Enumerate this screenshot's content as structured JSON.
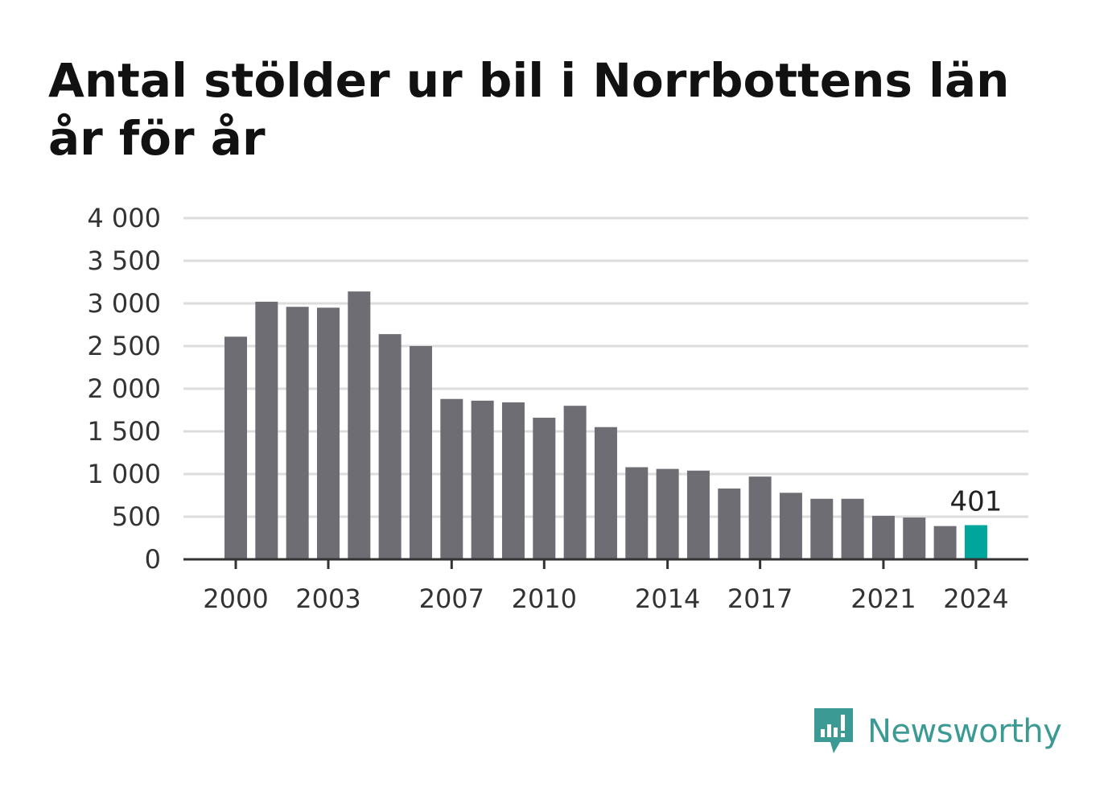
{
  "title": "Antal stölder ur bil i Norrbottens län år för år",
  "brand": {
    "name": "Newsworthy",
    "color": "#3c9a94"
  },
  "colors": {
    "bar": "#6e6d74",
    "highlight": "#00a69b",
    "grid": "#dddddd",
    "axis": "#333333"
  },
  "chart_data": {
    "type": "bar",
    "categories": [
      "2000",
      "2001",
      "2002",
      "2003",
      "2004",
      "2005",
      "2006",
      "2007",
      "2008",
      "2009",
      "2010",
      "2011",
      "2012",
      "2013",
      "2014",
      "2015",
      "2016",
      "2017",
      "2018",
      "2019",
      "2020",
      "2021",
      "2022",
      "2023",
      "2024"
    ],
    "values": [
      2610,
      3020,
      2960,
      2950,
      3140,
      2640,
      2500,
      1880,
      1860,
      1840,
      1660,
      1800,
      1550,
      1080,
      1060,
      1040,
      830,
      970,
      780,
      710,
      710,
      510,
      490,
      390,
      401
    ],
    "highlight": "2024",
    "data_labels": [
      {
        "category": "2024",
        "text": "401"
      }
    ],
    "x_tick_labels": [
      "2000",
      "2003",
      "2007",
      "2010",
      "2014",
      "2017",
      "2021",
      "2024"
    ],
    "y_ticks": [
      0,
      500,
      1000,
      1500,
      2000,
      2500,
      3000,
      3500,
      4000
    ],
    "y_tick_labels": [
      "0",
      "500",
      "1 000",
      "1 500",
      "2 000",
      "2 500",
      "3 000",
      "3 500",
      "4 000"
    ],
    "ylim": [
      0,
      4000
    ],
    "grid": true,
    "xlabel": "",
    "ylabel": ""
  }
}
